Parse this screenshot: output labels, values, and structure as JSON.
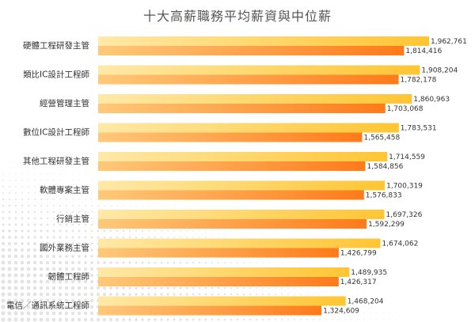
{
  "chart_data": {
    "type": "bar",
    "orientation": "horizontal",
    "title": "十大高薪職務平均薪資與中位薪",
    "categories": [
      "硬體工程研發主管",
      "類比IC設計工程師",
      "經營管理主管",
      "數位IC設計工程師",
      "其他工程研發主管",
      "軟體專案主管",
      "行銷主管",
      "國外業務主管",
      "韌體工程師",
      "電信／通訊系統工程師"
    ],
    "series": [
      {
        "values": [
          1962761,
          1908204,
          1860963,
          1783531,
          1714559,
          1700319,
          1697326,
          1674062,
          1489935,
          1468204
        ],
        "labels": [
          "1,962,761",
          "1,908,204",
          "1,860,963",
          "1,783,531",
          "1,714,559",
          "1,700,319",
          "1,697,326",
          "1,674,062",
          "1,489,935",
          "1,468,204"
        ],
        "color": "#FFC533"
      },
      {
        "values": [
          1814416,
          1782178,
          1703068,
          1565458,
          1584856,
          1576833,
          1592299,
          1426799,
          1426317,
          1324609
        ],
        "labels": [
          "1,814,416",
          "1,782,178",
          "1,703,068",
          "1,565,458",
          "1,584,856",
          "1,576,833",
          "1,592,299",
          "1,426,799",
          "1,426,317",
          "1,324,609"
        ],
        "color": "#FF7A1A"
      }
    ],
    "xlim": [
      0,
      1962761
    ],
    "grid": false,
    "legend": "none"
  }
}
